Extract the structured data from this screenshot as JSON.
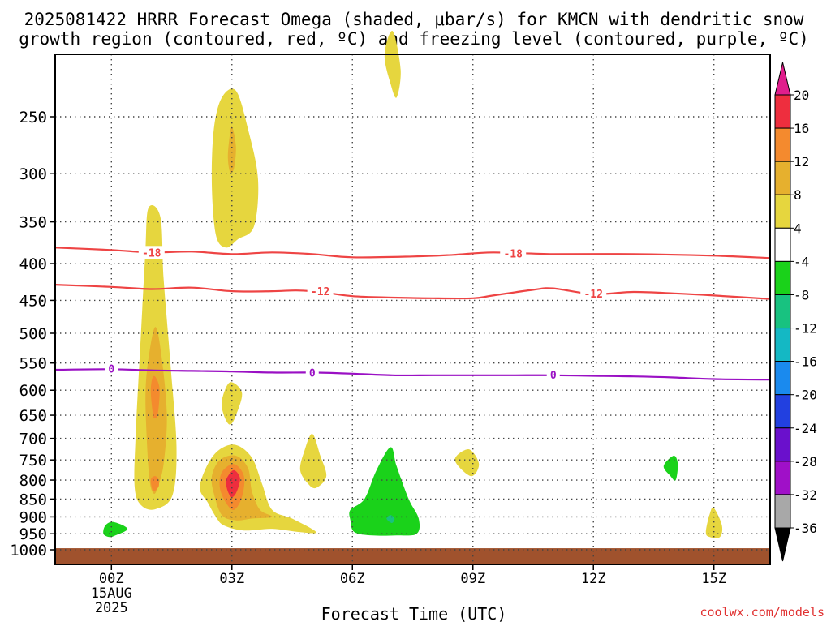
{
  "chart_data": {
    "type": "heatmap",
    "title_line1": "2025081422 HRRR Forecast Omega (shaded, μbar/s) for KMCN with dendritic snow",
    "title_line2": "growth region (contoured, red, ºC) and freezing level (contoured, purple, ºC)",
    "xlabel": "Forecast Time (UTC)",
    "watermark": "coolwx.com/models",
    "x_domain_hours": [
      -1.4,
      16.4
    ],
    "y_domain_hpa": [
      200,
      1020
    ],
    "y_scale": "log-pressure (inverted)",
    "grid": "dotted",
    "x_ticks": [
      {
        "hour": 0,
        "label": "00Z",
        "sub1": "15AUG",
        "sub2": "2025"
      },
      {
        "hour": 3,
        "label": "03Z"
      },
      {
        "hour": 6,
        "label": "06Z"
      },
      {
        "hour": 9,
        "label": "09Z"
      },
      {
        "hour": 12,
        "label": "12Z"
      },
      {
        "hour": 15,
        "label": "15Z"
      }
    ],
    "y_ticks": [
      250,
      300,
      350,
      400,
      450,
      500,
      550,
      600,
      650,
      700,
      750,
      800,
      850,
      900,
      950,
      1000
    ],
    "colorbar": {
      "labels": [
        "20",
        "16",
        "12",
        "8",
        "4",
        "-4",
        "-8",
        "-12",
        "-16",
        "-20",
        "-24",
        "-28",
        "-32",
        "-36"
      ],
      "bins": [
        {
          "color": "#ee2e3e"
        },
        {
          "color": "#f48a2e"
        },
        {
          "color": "#e6b02e"
        },
        {
          "color": "#e6d63e"
        },
        {
          "color": "#ffffff"
        },
        {
          "color": "#1ad21a"
        },
        {
          "color": "#18c280"
        },
        {
          "color": "#14b8c4"
        },
        {
          "color": "#1a8aee"
        },
        {
          "color": "#2240e0"
        },
        {
          "color": "#6a10cc"
        },
        {
          "color": "#a010c8"
        },
        {
          "color": "#a8a8a8"
        }
      ],
      "top_arrow_color": "#e01e8c",
      "bottom_arrow_color": "#000000"
    },
    "colors": {
      "omega_4_8": "#e6d63e",
      "omega_8_12": "#e6b02e",
      "omega_12_16": "#f48a2e",
      "omega_16_20": "#ee2e3e",
      "omega_neg4_neg8": "#1ad21a",
      "omega_neg8_neg12": "#18c280",
      "ground": "#a0522d",
      "dgz_contour": "#ee4444",
      "freezing_contour": "#9a10c4"
    },
    "omega_regions": [
      {
        "bin": "4-8",
        "points": [
          [
            0.75,
            868
          ],
          [
            0.58,
            820
          ],
          [
            0.6,
            700
          ],
          [
            0.72,
            520
          ],
          [
            0.84,
            390
          ],
          [
            0.92,
            335
          ],
          [
            1.22,
            345
          ],
          [
            1.3,
            420
          ],
          [
            1.48,
            560
          ],
          [
            1.62,
            720
          ],
          [
            1.52,
            840
          ],
          [
            1.1,
            878
          ]
        ]
      },
      {
        "bin": "8-12",
        "points": [
          [
            0.95,
            800
          ],
          [
            0.88,
            700
          ],
          [
            0.85,
            600
          ],
          [
            0.95,
            530
          ],
          [
            1.1,
            490
          ],
          [
            1.25,
            540
          ],
          [
            1.38,
            650
          ],
          [
            1.3,
            760
          ],
          [
            1.15,
            820
          ],
          [
            1.05,
            835
          ]
        ]
      },
      {
        "bin": "12-16",
        "points": [
          [
            1.02,
            640
          ],
          [
            0.98,
            600
          ],
          [
            1.03,
            575
          ],
          [
            1.12,
            578
          ],
          [
            1.2,
            600
          ],
          [
            1.15,
            650
          ],
          [
            1.05,
            655
          ]
        ]
      },
      {
        "bin": "12-16",
        "points": [
          [
            1.02,
            825
          ],
          [
            0.98,
            800
          ],
          [
            1.06,
            790
          ],
          [
            1.16,
            795
          ],
          [
            1.18,
            815
          ],
          [
            1.08,
            828
          ]
        ]
      },
      {
        "bin": "4-8",
        "points": [
          [
            2.6,
            365
          ],
          [
            2.5,
            310
          ],
          [
            2.55,
            260
          ],
          [
            2.75,
            235
          ],
          [
            3.1,
            230
          ],
          [
            3.4,
            260
          ],
          [
            3.65,
            305
          ],
          [
            3.55,
            355
          ],
          [
            3.15,
            370
          ],
          [
            2.85,
            380
          ]
        ]
      },
      {
        "bin": "8-12",
        "points": [
          [
            2.9,
            285
          ],
          [
            2.93,
            270
          ],
          [
            3.0,
            258
          ],
          [
            3.1,
            275
          ],
          [
            3.05,
            295
          ],
          [
            2.95,
            298
          ]
        ]
      },
      {
        "bin": "4-8",
        "points": [
          [
            2.75,
            620
          ],
          [
            2.95,
            585
          ],
          [
            3.25,
            605
          ],
          [
            3.1,
            650
          ],
          [
            2.95,
            670
          ],
          [
            2.8,
            650
          ]
        ]
      },
      {
        "bin": "4-8",
        "points": [
          [
            2.4,
            860
          ],
          [
            2.2,
            820
          ],
          [
            2.4,
            760
          ],
          [
            2.7,
            725
          ],
          [
            3.1,
            715
          ],
          [
            3.5,
            745
          ],
          [
            3.75,
            810
          ],
          [
            4.0,
            880
          ],
          [
            4.5,
            905
          ],
          [
            5.1,
            945
          ],
          [
            4.7,
            945
          ],
          [
            4.0,
            935
          ],
          [
            3.3,
            940
          ],
          [
            2.8,
            925
          ],
          [
            2.6,
            900
          ]
        ]
      },
      {
        "bin": "8-12",
        "points": [
          [
            2.55,
            835
          ],
          [
            2.5,
            790
          ],
          [
            2.7,
            750
          ],
          [
            3.1,
            740
          ],
          [
            3.4,
            770
          ],
          [
            3.5,
            830
          ],
          [
            3.7,
            880
          ],
          [
            4.0,
            900
          ],
          [
            3.5,
            905
          ],
          [
            3.1,
            910
          ],
          [
            2.75,
            895
          ]
        ]
      },
      {
        "bin": "12-16",
        "points": [
          [
            2.7,
            820
          ],
          [
            2.75,
            780
          ],
          [
            3.05,
            760
          ],
          [
            3.3,
            790
          ],
          [
            3.25,
            845
          ],
          [
            3.05,
            880
          ],
          [
            2.85,
            860
          ]
        ]
      },
      {
        "bin": "16-20",
        "points": [
          [
            2.85,
            805
          ],
          [
            2.9,
            790
          ],
          [
            3.05,
            775
          ],
          [
            3.2,
            795
          ],
          [
            3.12,
            830
          ],
          [
            3.0,
            845
          ],
          [
            2.9,
            830
          ]
        ]
      },
      {
        "bin": "4-8",
        "points": [
          [
            4.7,
            775
          ],
          [
            4.8,
            730
          ],
          [
            5.0,
            690
          ],
          [
            5.2,
            740
          ],
          [
            5.35,
            790
          ],
          [
            5.1,
            820
          ],
          [
            4.9,
            810
          ]
        ]
      },
      {
        "bin": "4-8",
        "points": [
          [
            6.8,
            205
          ],
          [
            7.0,
            190
          ],
          [
            7.2,
            215
          ],
          [
            7.1,
            235
          ],
          [
            6.95,
            225
          ]
        ]
      },
      {
        "bin": "-4--8",
        "points": [
          [
            5.95,
            910
          ],
          [
            5.95,
            880
          ],
          [
            6.3,
            850
          ],
          [
            6.6,
            775
          ],
          [
            6.95,
            720
          ],
          [
            7.1,
            765
          ],
          [
            7.4,
            850
          ],
          [
            7.65,
            905
          ],
          [
            7.6,
            950
          ],
          [
            7.1,
            955
          ],
          [
            6.5,
            955
          ],
          [
            6.05,
            945
          ]
        ]
      },
      {
        "bin": "-8--12",
        "points": [
          [
            6.85,
            905
          ],
          [
            6.95,
            895
          ],
          [
            7.05,
            905
          ],
          [
            6.98,
            918
          ]
        ]
      },
      {
        "bin": "4-8",
        "points": [
          [
            8.55,
            750
          ],
          [
            8.9,
            725
          ],
          [
            9.15,
            760
          ],
          [
            8.95,
            790
          ]
        ]
      },
      {
        "bin": "-4--8",
        "points": [
          [
            13.75,
            765
          ],
          [
            14.0,
            740
          ],
          [
            14.1,
            760
          ],
          [
            14.05,
            800
          ],
          [
            13.92,
            790
          ]
        ]
      },
      {
        "bin": "4-8",
        "points": [
          [
            14.8,
            945
          ],
          [
            14.9,
            890
          ],
          [
            15.0,
            875
          ],
          [
            15.2,
            925
          ],
          [
            15.15,
            960
          ],
          [
            14.9,
            960
          ]
        ]
      },
      {
        "bin": "-4--8",
        "points": [
          [
            -0.2,
            950
          ],
          [
            -0.15,
            925
          ],
          [
            0.05,
            915
          ],
          [
            0.4,
            935
          ],
          [
            0.1,
            955
          ],
          [
            -0.05,
            960
          ]
        ]
      }
    ],
    "contours": [
      {
        "level": "-18",
        "color": "dgz",
        "points": [
          [
            -1.4,
            380
          ],
          [
            0.0,
            383
          ],
          [
            1.0,
            386
          ],
          [
            2.0,
            385
          ],
          [
            3.0,
            388
          ],
          [
            4.0,
            386
          ],
          [
            5.0,
            388
          ],
          [
            6.0,
            392
          ],
          [
            7.5,
            391
          ],
          [
            8.5,
            389
          ],
          [
            9.5,
            386
          ],
          [
            11.0,
            388
          ],
          [
            13.0,
            388
          ],
          [
            15.0,
            390
          ],
          [
            16.4,
            393
          ]
        ],
        "labels": [
          {
            "x": 1.0,
            "y": 386
          },
          {
            "x": 10.0,
            "y": 387
          }
        ]
      },
      {
        "level": "-12",
        "color": "dgz",
        "points": [
          [
            -1.4,
            428
          ],
          [
            0.0,
            431
          ],
          [
            1.0,
            434
          ],
          [
            2.0,
            432
          ],
          [
            3.0,
            437
          ],
          [
            4.0,
            437
          ],
          [
            4.6,
            436
          ],
          [
            5.2,
            438
          ],
          [
            6.0,
            444
          ],
          [
            7.0,
            446
          ],
          [
            8.0,
            447
          ],
          [
            9.0,
            447
          ],
          [
            9.5,
            443
          ],
          [
            10.5,
            435
          ],
          [
            11.0,
            433
          ],
          [
            12.0,
            441
          ],
          [
            13.0,
            438
          ],
          [
            14.0,
            440
          ],
          [
            15.0,
            443
          ],
          [
            16.4,
            448
          ]
        ],
        "labels": [
          {
            "x": 5.2,
            "y": 437
          },
          {
            "x": 12.0,
            "y": 440
          }
        ]
      },
      {
        "level": "0",
        "color": "freezing",
        "points": [
          [
            -1.4,
            562
          ],
          [
            0.0,
            561
          ],
          [
            1.0,
            563
          ],
          [
            2.0,
            564
          ],
          [
            3.0,
            565
          ],
          [
            4.0,
            567
          ],
          [
            5.0,
            567
          ],
          [
            6.0,
            569
          ],
          [
            7.0,
            572
          ],
          [
            8.0,
            572
          ],
          [
            9.0,
            572
          ],
          [
            10.0,
            572
          ],
          [
            11.0,
            572
          ],
          [
            12.0,
            573
          ],
          [
            13.0,
            574
          ],
          [
            14.0,
            576
          ],
          [
            15.0,
            579
          ],
          [
            16.4,
            580
          ]
        ],
        "labels": [
          {
            "x": 0.0,
            "y": 560
          },
          {
            "x": 5.0,
            "y": 567
          },
          {
            "x": 11.0,
            "y": 571
          }
        ]
      }
    ],
    "ground": {
      "top_hpa": 995,
      "bottom_hpa": 1020
    }
  }
}
